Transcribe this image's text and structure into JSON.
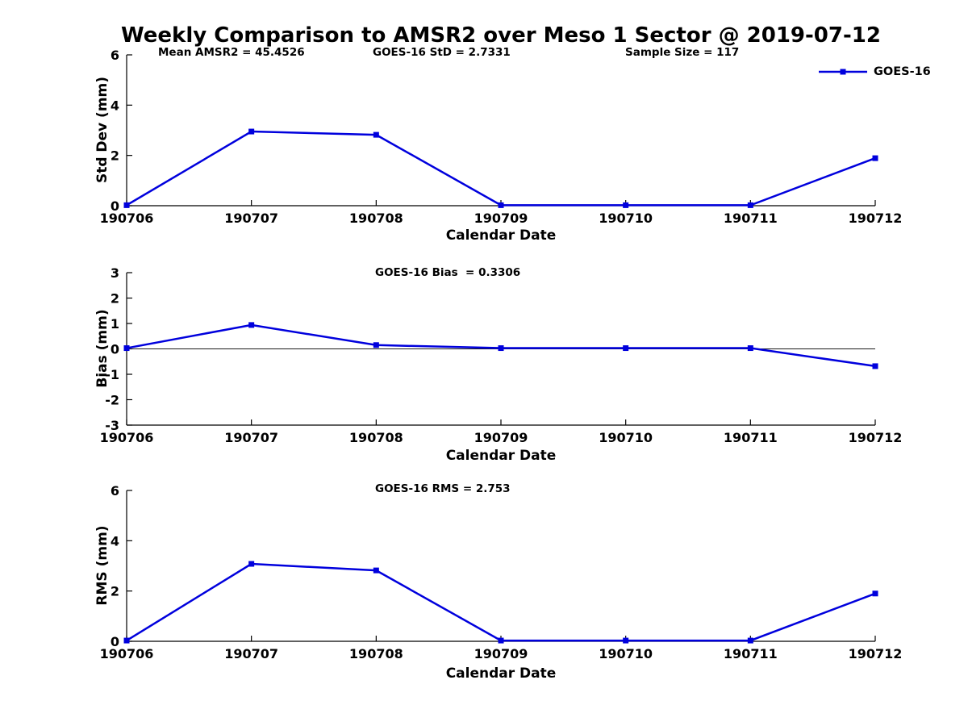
{
  "title": "Weekly Comparison to AMSR2 over Meso 1 Sector @ 2019-07-12",
  "colors": {
    "series": "#0000DD",
    "axis": "#000000",
    "zero_line": "#1a1a1a",
    "text": "#000000",
    "background": "#ffffff"
  },
  "legend": {
    "label": "GOES-16",
    "position": "top-right",
    "box": false
  },
  "chart_data": [
    {
      "type": "line",
      "id": "std-dev",
      "series_name": "GOES-16",
      "categories": [
        "190706",
        "190707",
        "190708",
        "190709",
        "190710",
        "190711",
        "190712"
      ],
      "values": [
        0.02,
        2.95,
        2.82,
        0.02,
        0.02,
        0.02,
        1.89
      ],
      "xlabel": "Calendar Date",
      "ylabel": "Std Dev (mm)",
      "y_ticks": [
        0,
        2,
        4,
        6
      ],
      "ylim": [
        0,
        6
      ],
      "grid": false,
      "marker": "square",
      "zero_line": false,
      "annotations": [
        "Mean AMSR2 = 45.4526",
        "GOES-16 StD = 2.7331",
        "Sample Size = 117"
      ]
    },
    {
      "type": "line",
      "id": "bias",
      "series_name": "GOES-16",
      "categories": [
        "190706",
        "190707",
        "190708",
        "190709",
        "190710",
        "190711",
        "190712"
      ],
      "values": [
        0.03,
        0.94,
        0.15,
        0.03,
        0.03,
        0.03,
        -0.68
      ],
      "xlabel": "Calendar Date",
      "ylabel": "Bias (mm)",
      "y_ticks": [
        -3,
        -2,
        -1,
        0,
        1,
        2,
        3
      ],
      "ylim": [
        -3,
        3
      ],
      "grid": false,
      "marker": "square",
      "zero_line": true,
      "annotations": [
        "GOES-16 Bias  = 0.3306"
      ]
    },
    {
      "type": "line",
      "id": "rms",
      "series_name": "GOES-16",
      "categories": [
        "190706",
        "190707",
        "190708",
        "190709",
        "190710",
        "190711",
        "190712"
      ],
      "values": [
        0.03,
        3.08,
        2.82,
        0.03,
        0.03,
        0.03,
        1.9
      ],
      "xlabel": "Calendar Date",
      "ylabel": "RMS (mm)",
      "y_ticks": [
        0,
        2,
        4,
        6
      ],
      "ylim": [
        0,
        6
      ],
      "grid": false,
      "marker": "square",
      "zero_line": false,
      "annotations": [
        "GOES-16 RMS = 2.753"
      ]
    }
  ]
}
